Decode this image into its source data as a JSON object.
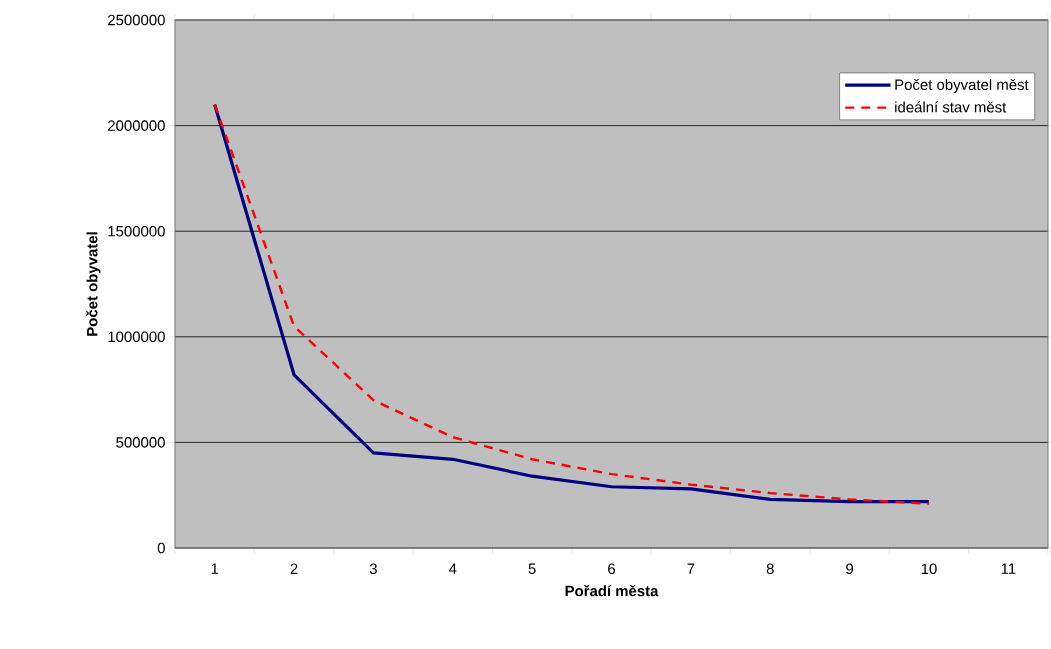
{
  "chart_data": {
    "type": "line",
    "xlabel": "Pořadí města",
    "ylabel": "Počet obyvatel",
    "categories": [
      "1",
      "2",
      "3",
      "4",
      "5",
      "6",
      "7",
      "8",
      "9",
      "10",
      "11"
    ],
    "series": [
      {
        "name": "Počet obyvatel měst",
        "color": "#000080",
        "line_style": "solid",
        "values": [
          2100000,
          820000,
          450000,
          420000,
          340000,
          290000,
          280000,
          230000,
          220000,
          220000,
          null
        ]
      },
      {
        "name": "ideální stav měst",
        "color": "#ff0000",
        "line_style": "dashed",
        "values": [
          2100000,
          1050000,
          700000,
          525000,
          420000,
          350000,
          300000,
          260000,
          230000,
          210000,
          null
        ]
      }
    ],
    "ylim": [
      0,
      2500000
    ],
    "yticks": [
      0,
      500000,
      1000000,
      1500000,
      2000000,
      2500000
    ],
    "grid": "y",
    "legend": "top right"
  }
}
